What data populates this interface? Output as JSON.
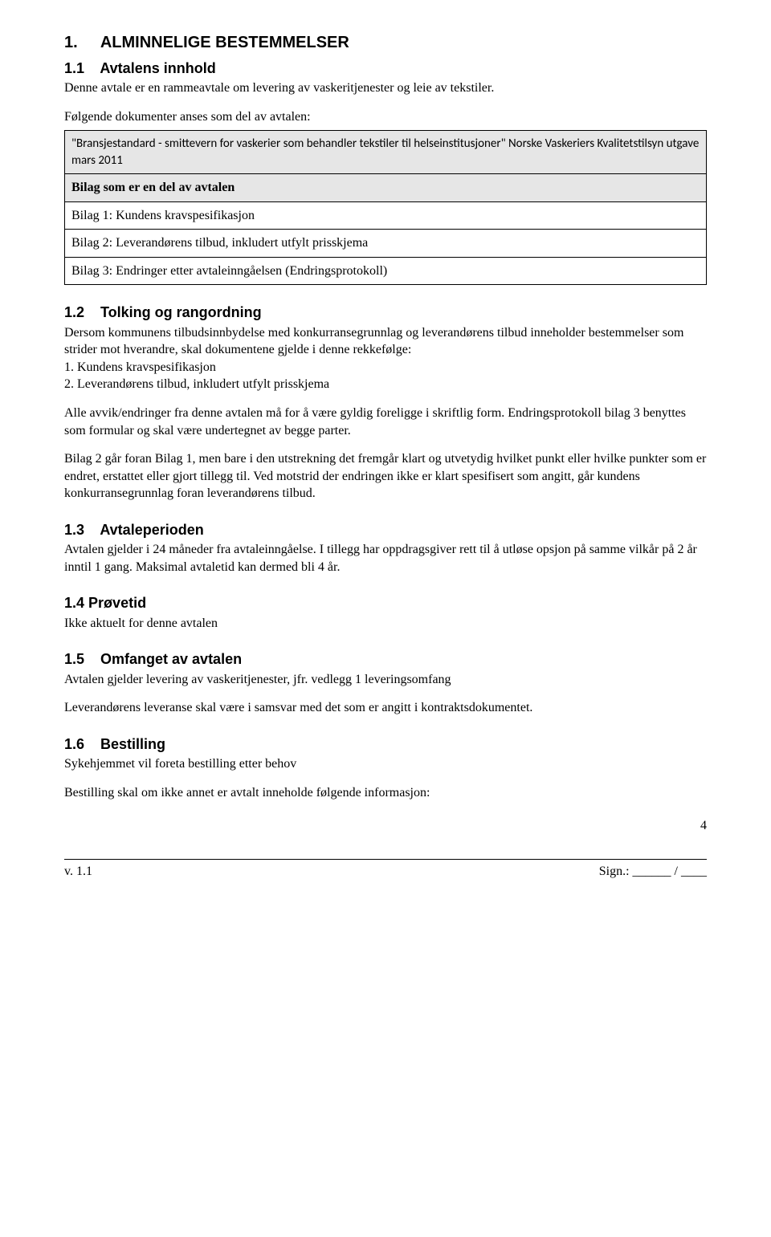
{
  "h1": {
    "num": "1.",
    "title": "ALMINNELIGE BESTEMMELSER"
  },
  "s11": {
    "num": "1.1",
    "title": "Avtalens innhold",
    "intro": "Denne avtale er en rammeavtale om levering av vaskeritjenester og leie av tekstiler.",
    "lead": "Følgende dokumenter anses som del av avtalen:",
    "row1": "\"Bransjestandard - smittevern for vaskerier som behandler tekstiler til helseinstitusjoner\" Norske Vaskeriers Kvalitetstilsyn utgave mars 2011",
    "row2": "Bilag som er en del av avtalen",
    "row3": "Bilag 1: Kundens kravspesifikasjon",
    "row4": "Bilag 2: Leverandørens tilbud, inkludert utfylt prisskjema",
    "row5": "Bilag 3: Endringer etter avtaleinngåelsen (Endringsprotokoll)"
  },
  "s12": {
    "num": "1.2",
    "title": "Tolking og rangordning",
    "p1": "Dersom kommunens tilbudsinnbydelse med konkurransegrunnlag og leverandørens tilbud inneholder bestemmelser som strider mot hverandre, skal dokumentene gjelde i denne rekkefølge:",
    "li1": "1. Kundens kravspesifikasjon",
    "li2": "2. Leverandørens tilbud, inkludert utfylt prisskjema",
    "p2": "Alle avvik/endringer fra denne avtalen må for å være gyldig foreligge i skriftlig form. Endringsprotokoll bilag 3 benyttes som formular og skal være undertegnet av begge parter.",
    "p3": "Bilag 2 går foran Bilag 1, men bare i den utstrekning det fremgår klart og utvetydig hvilket punkt eller hvilke punkter som er endret, erstattet eller gjort tillegg til. Ved motstrid der endringen ikke er klart spesifisert som angitt, går kundens konkurransegrunnlag foran leverandørens tilbud."
  },
  "s13": {
    "num": "1.3",
    "title": "Avtaleperioden",
    "p1": "Avtalen gjelder i 24 måneder fra avtaleinngåelse. I tillegg har oppdragsgiver rett til å utløse opsjon på samme vilkår på 2 år inntil 1 gang. Maksimal avtaletid kan dermed bli 4 år."
  },
  "s14": {
    "num": "1.4",
    "title": "Prøvetid",
    "p1": "Ikke aktuelt for denne avtalen"
  },
  "s15": {
    "num": "1.5",
    "title": "Omfanget av avtalen",
    "p1": "Avtalen gjelder levering av vaskeritjenester, jfr. vedlegg 1 leveringsomfang",
    "p2": "Leverandørens leveranse skal være i samsvar med det som er angitt i kontraktsdokumentet."
  },
  "s16": {
    "num": "1.6",
    "title": "Bestilling",
    "p1": "Sykehjemmet vil foreta bestilling etter behov",
    "p2": "Bestilling skal om ikke annet er avtalt inneholde følgende informasjon:"
  },
  "footer": {
    "left": "v. 1.1",
    "right": "Sign.: ______ / ____",
    "page": "4"
  }
}
